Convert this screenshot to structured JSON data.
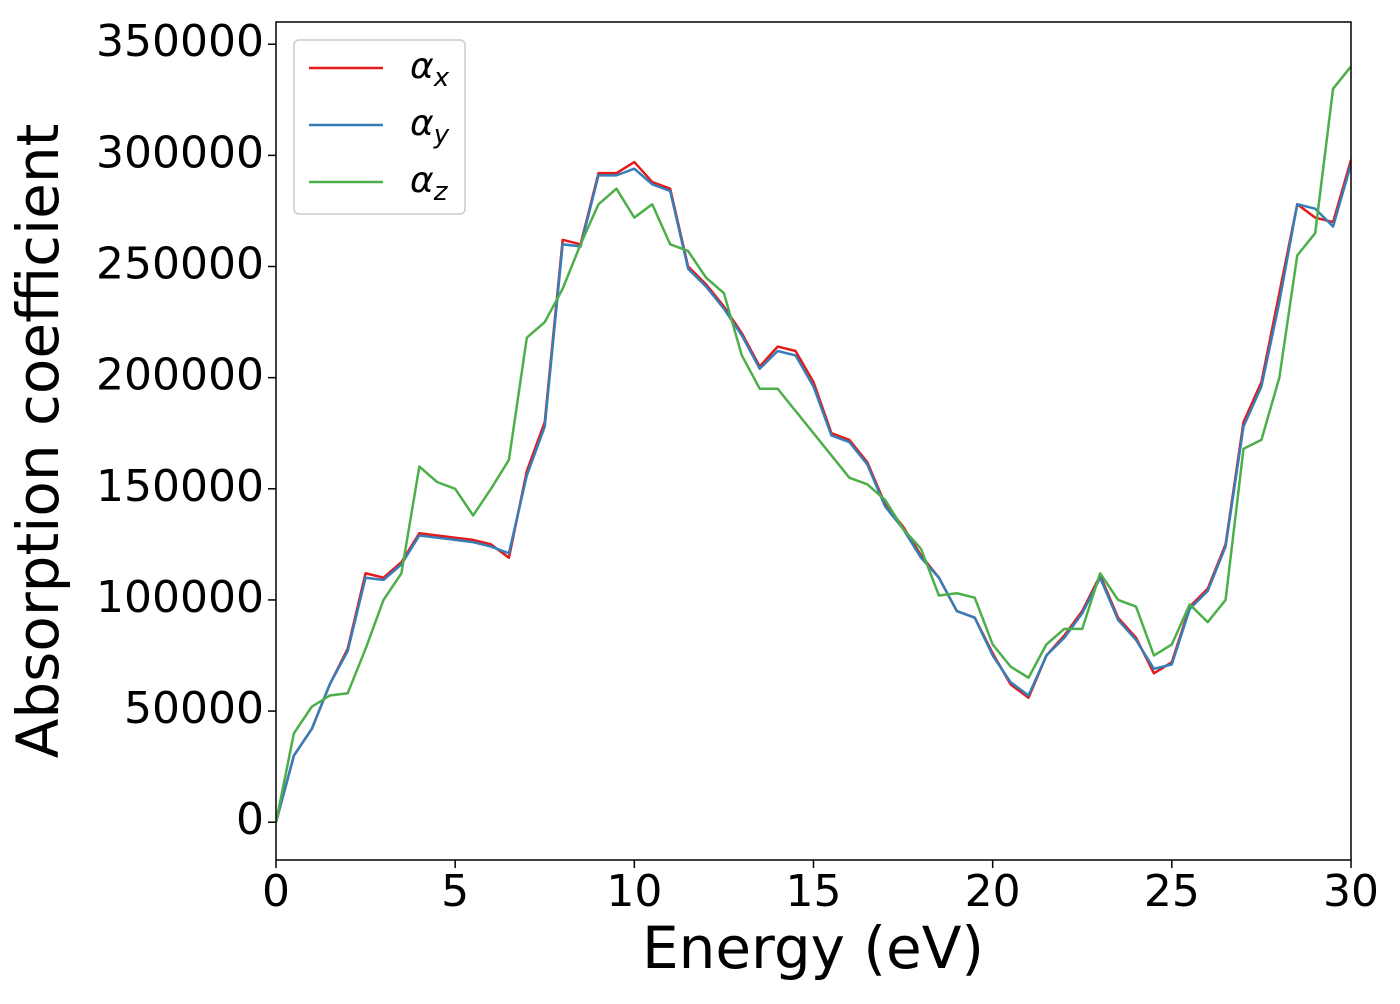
{
  "chart_data": {
    "type": "line",
    "xlabel": "Energy (eV)",
    "ylabel": "Absorption coefficient",
    "x": [
      0,
      0.5,
      1,
      1.5,
      2,
      2.5,
      3,
      3.5,
      4,
      4.5,
      5,
      5.5,
      6,
      6.5,
      7,
      7.5,
      8,
      8.5,
      9,
      9.5,
      10,
      10.5,
      11,
      11.5,
      12,
      12.5,
      13,
      13.5,
      14,
      14.5,
      15,
      15.5,
      16,
      16.5,
      17,
      17.5,
      18,
      18.5,
      19,
      19.5,
      20,
      20.5,
      21,
      21.5,
      22,
      22.5,
      23,
      23.5,
      24,
      24.5,
      25,
      25.5,
      26,
      26.5,
      27,
      27.5,
      28,
      28.5,
      29,
      29.5,
      30
    ],
    "series": [
      {
        "name": "αx",
        "color": "#e41a1c",
        "values": [
          0,
          30000,
          42000,
          62000,
          78000,
          112000,
          110000,
          117000,
          130000,
          129000,
          128000,
          127000,
          125000,
          119000,
          158000,
          180000,
          262000,
          260000,
          292000,
          292000,
          297000,
          288000,
          285000,
          250000,
          242000,
          232000,
          220000,
          205000,
          214000,
          212000,
          198000,
          175000,
          172000,
          162000,
          143000,
          133000,
          120000,
          110000,
          95000,
          92000,
          76000,
          62000,
          56000,
          75000,
          84000,
          95000,
          111000,
          92000,
          83000,
          67000,
          72000,
          97000,
          105000,
          125000,
          180000,
          198000,
          238000,
          278000,
          272000,
          270000,
          298000
        ]
      },
      {
        "name": "αy",
        "color": "#377eb8",
        "values": [
          0,
          30000,
          42000,
          62000,
          77000,
          110000,
          109000,
          116000,
          129000,
          128000,
          127000,
          126000,
          124000,
          121000,
          156000,
          178000,
          260000,
          259000,
          291000,
          291000,
          294000,
          287000,
          284000,
          249000,
          241000,
          231000,
          219000,
          204000,
          212000,
          210000,
          196000,
          174000,
          171000,
          161000,
          142000,
          132000,
          119000,
          110000,
          95000,
          92000,
          75000,
          63000,
          57000,
          75000,
          83000,
          94000,
          110000,
          91000,
          82000,
          69000,
          71000,
          96000,
          104000,
          124000,
          178000,
          196000,
          234000,
          278000,
          276000,
          268000,
          296000
        ]
      },
      {
        "name": "αz",
        "color": "#4daf4a",
        "values": [
          0,
          40000,
          52000,
          57000,
          58000,
          78000,
          100000,
          112000,
          160000,
          153000,
          150000,
          138000,
          150000,
          163000,
          218000,
          225000,
          240000,
          260000,
          278000,
          285000,
          272000,
          278000,
          260000,
          257000,
          245000,
          238000,
          210000,
          195000,
          195000,
          185000,
          175000,
          165000,
          155000,
          152000,
          145000,
          132000,
          123000,
          102000,
          103000,
          101000,
          80000,
          70000,
          65000,
          80000,
          87000,
          87000,
          112000,
          100000,
          97000,
          75000,
          80000,
          98000,
          90000,
          100000,
          168000,
          172000,
          200000,
          255000,
          265000,
          330000,
          340000
        ]
      }
    ],
    "xlim": [
      0,
      30
    ],
    "xticks": [
      0,
      5,
      10,
      15,
      20,
      25,
      30
    ],
    "ylim": [
      -17000,
      360000
    ],
    "yticks": [
      0,
      50000,
      100000,
      150000,
      200000,
      250000,
      300000,
      350000
    ],
    "grid": false,
    "legend": "upper left"
  }
}
